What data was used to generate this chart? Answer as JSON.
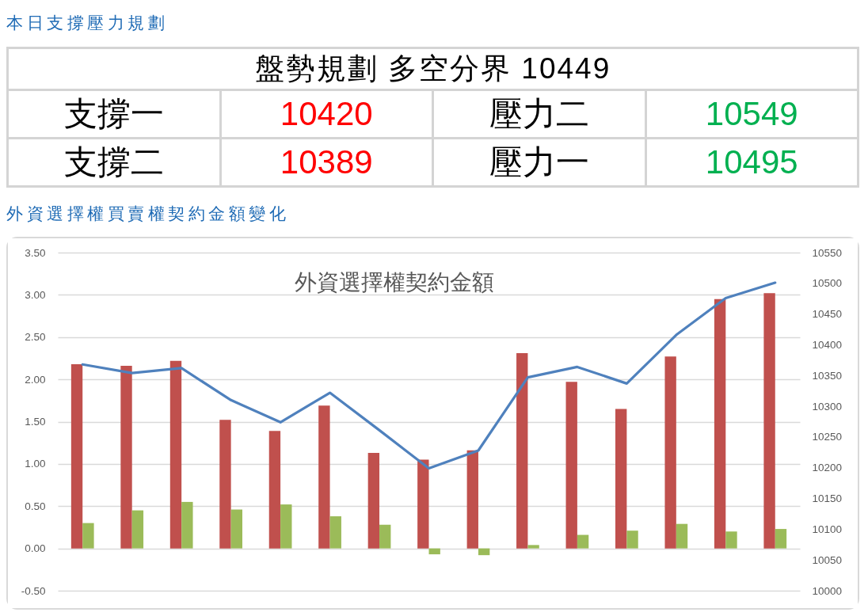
{
  "chart_data": [
    {
      "type": "other",
      "title": "本日支撐壓力規劃",
      "annotations": [
        "盤勢規劃 多空分界 10449",
        "支撐一",
        "10420",
        "壓力二",
        "10549",
        "支撐二",
        "10389",
        "壓力一",
        "10495"
      ],
      "colors": [
        "#000000",
        "#000000",
        "#ff0000",
        "#000000",
        "#00b050",
        "#000000",
        "#ff0000",
        "#000000",
        "#00b050"
      ]
    },
    {
      "type": "bar",
      "title": "外資選擇權買賣權契約金額變化",
      "subtitle": "外資選擇權契約金額",
      "categories": [
        null,
        null,
        null,
        null,
        null,
        null,
        null,
        null,
        null,
        null,
        null,
        null,
        null,
        null,
        null
      ],
      "series": [
        {
          "color": "#c0504d",
          "values": [
            2.18,
            2.16,
            2.22,
            1.52,
            1.39,
            1.69,
            1.13,
            1.05,
            1.16,
            2.31,
            1.97,
            1.65,
            2.27,
            2.95,
            3.02
          ]
        },
        {
          "color": "#9bbb59",
          "values": [
            0.3,
            0.45,
            0.55,
            0.46,
            0.52,
            0.38,
            0.28,
            -0.07,
            -0.08,
            0.04,
            0.16,
            0.21,
            0.29,
            0.2,
            0.23
          ]
        },
        {
          "type": "line",
          "axis": "y2",
          "color": "#4f81bd",
          "values": [
            10368,
            10354,
            10362,
            10310,
            10274,
            10322,
            10261,
            10199,
            10228,
            10347,
            10364,
            10337,
            10416,
            10476,
            10501
          ]
        }
      ],
      "ylim": [
        -0.5,
        3.5
      ],
      "yticks": [
        {
          "value": -0.5,
          "label": "-0.50"
        },
        {
          "value": 0,
          "label": "0.00"
        },
        {
          "value": 0.5,
          "label": "0.50"
        },
        {
          "value": 1,
          "label": "1.00"
        },
        {
          "value": 1.5,
          "label": "1.50"
        },
        {
          "value": 2,
          "label": "2.00"
        },
        {
          "value": 2.5,
          "label": "2.50"
        },
        {
          "value": 3,
          "label": "3.00"
        },
        {
          "value": 3.5,
          "label": "3.50"
        }
      ],
      "y2lim": [
        10000,
        10550
      ],
      "y2ticks": [
        10000,
        10050,
        10100,
        10150,
        10200,
        10250,
        10300,
        10350,
        10400,
        10450,
        10500,
        10550
      ],
      "grid": "y"
    }
  ]
}
